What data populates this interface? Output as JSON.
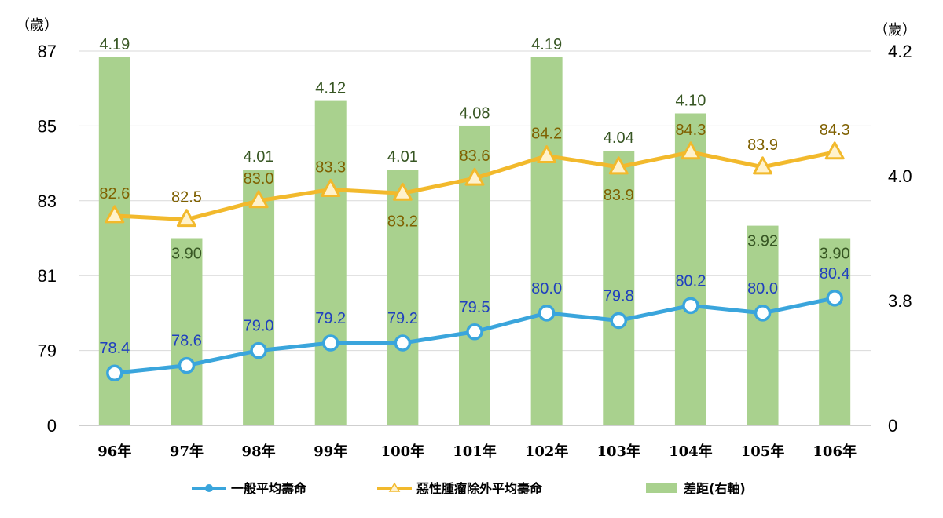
{
  "chart_data": {
    "type": "bar+line",
    "categories": [
      "96年",
      "97年",
      "98年",
      "99年",
      "100年",
      "101年",
      "102年",
      "103年",
      "104年",
      "105年",
      "106年"
    ],
    "left_axis": {
      "unit": "（歲）",
      "ticks": [
        "0",
        "79",
        "81",
        "83",
        "85",
        "87"
      ],
      "tick_values": [
        77,
        79,
        81,
        83,
        85,
        87
      ],
      "range": [
        77,
        87
      ]
    },
    "right_axis": {
      "unit": "（歲）",
      "ticks": [
        "0",
        "3.8",
        "4.0",
        "4.2"
      ],
      "tick_values": [
        3.6,
        3.8,
        4.0,
        4.2
      ],
      "range": [
        3.6,
        4.2
      ]
    },
    "series": [
      {
        "name": "差距(右軸)",
        "type": "bar",
        "axis": "right",
        "color": "#a9d18e",
        "label_color": "#375623",
        "values": [
          4.19,
          3.9,
          4.01,
          4.12,
          4.01,
          4.08,
          4.19,
          4.04,
          4.1,
          3.92,
          3.9
        ],
        "labels": [
          "4.19",
          "3.90",
          "4.01",
          "4.12",
          "4.01",
          "4.08",
          "4.19",
          "4.04",
          "4.10",
          "3.92",
          "3.90"
        ]
      },
      {
        "name": "惡性腫瘤除外平均壽命",
        "type": "line",
        "axis": "left",
        "color": "#f2b92c",
        "label_color": "#7f6000",
        "marker": "triangle",
        "values": [
          82.6,
          82.5,
          83.0,
          83.3,
          83.2,
          83.6,
          84.2,
          83.9,
          84.3,
          83.9,
          84.3
        ],
        "labels": [
          "82.6",
          "82.5",
          "83.0",
          "83.3",
          "83.2",
          "83.6",
          "84.2",
          "83.9",
          "84.3",
          "83.9",
          "84.3"
        ],
        "label_pos": [
          "above",
          "above",
          "above",
          "above",
          "below",
          "above",
          "above",
          "below",
          "above",
          "above",
          "above"
        ]
      },
      {
        "name": "一般平均壽命",
        "type": "line",
        "axis": "left",
        "color": "#3aa5dc",
        "label_color": "#1f3fbf",
        "marker": "circle",
        "values": [
          78.4,
          78.6,
          79.0,
          79.2,
          79.2,
          79.5,
          80.0,
          79.8,
          80.2,
          80.0,
          80.4
        ],
        "labels": [
          "78.4",
          "78.6",
          "79.0",
          "79.2",
          "79.2",
          "79.5",
          "80.0",
          "79.8",
          "80.2",
          "80.0",
          "80.4"
        ]
      }
    ],
    "legend": {
      "position": "bottom",
      "items": [
        "一般平均壽命",
        "惡性腫瘤除外平均壽命",
        "差距(右軸)"
      ]
    },
    "grid": true
  }
}
